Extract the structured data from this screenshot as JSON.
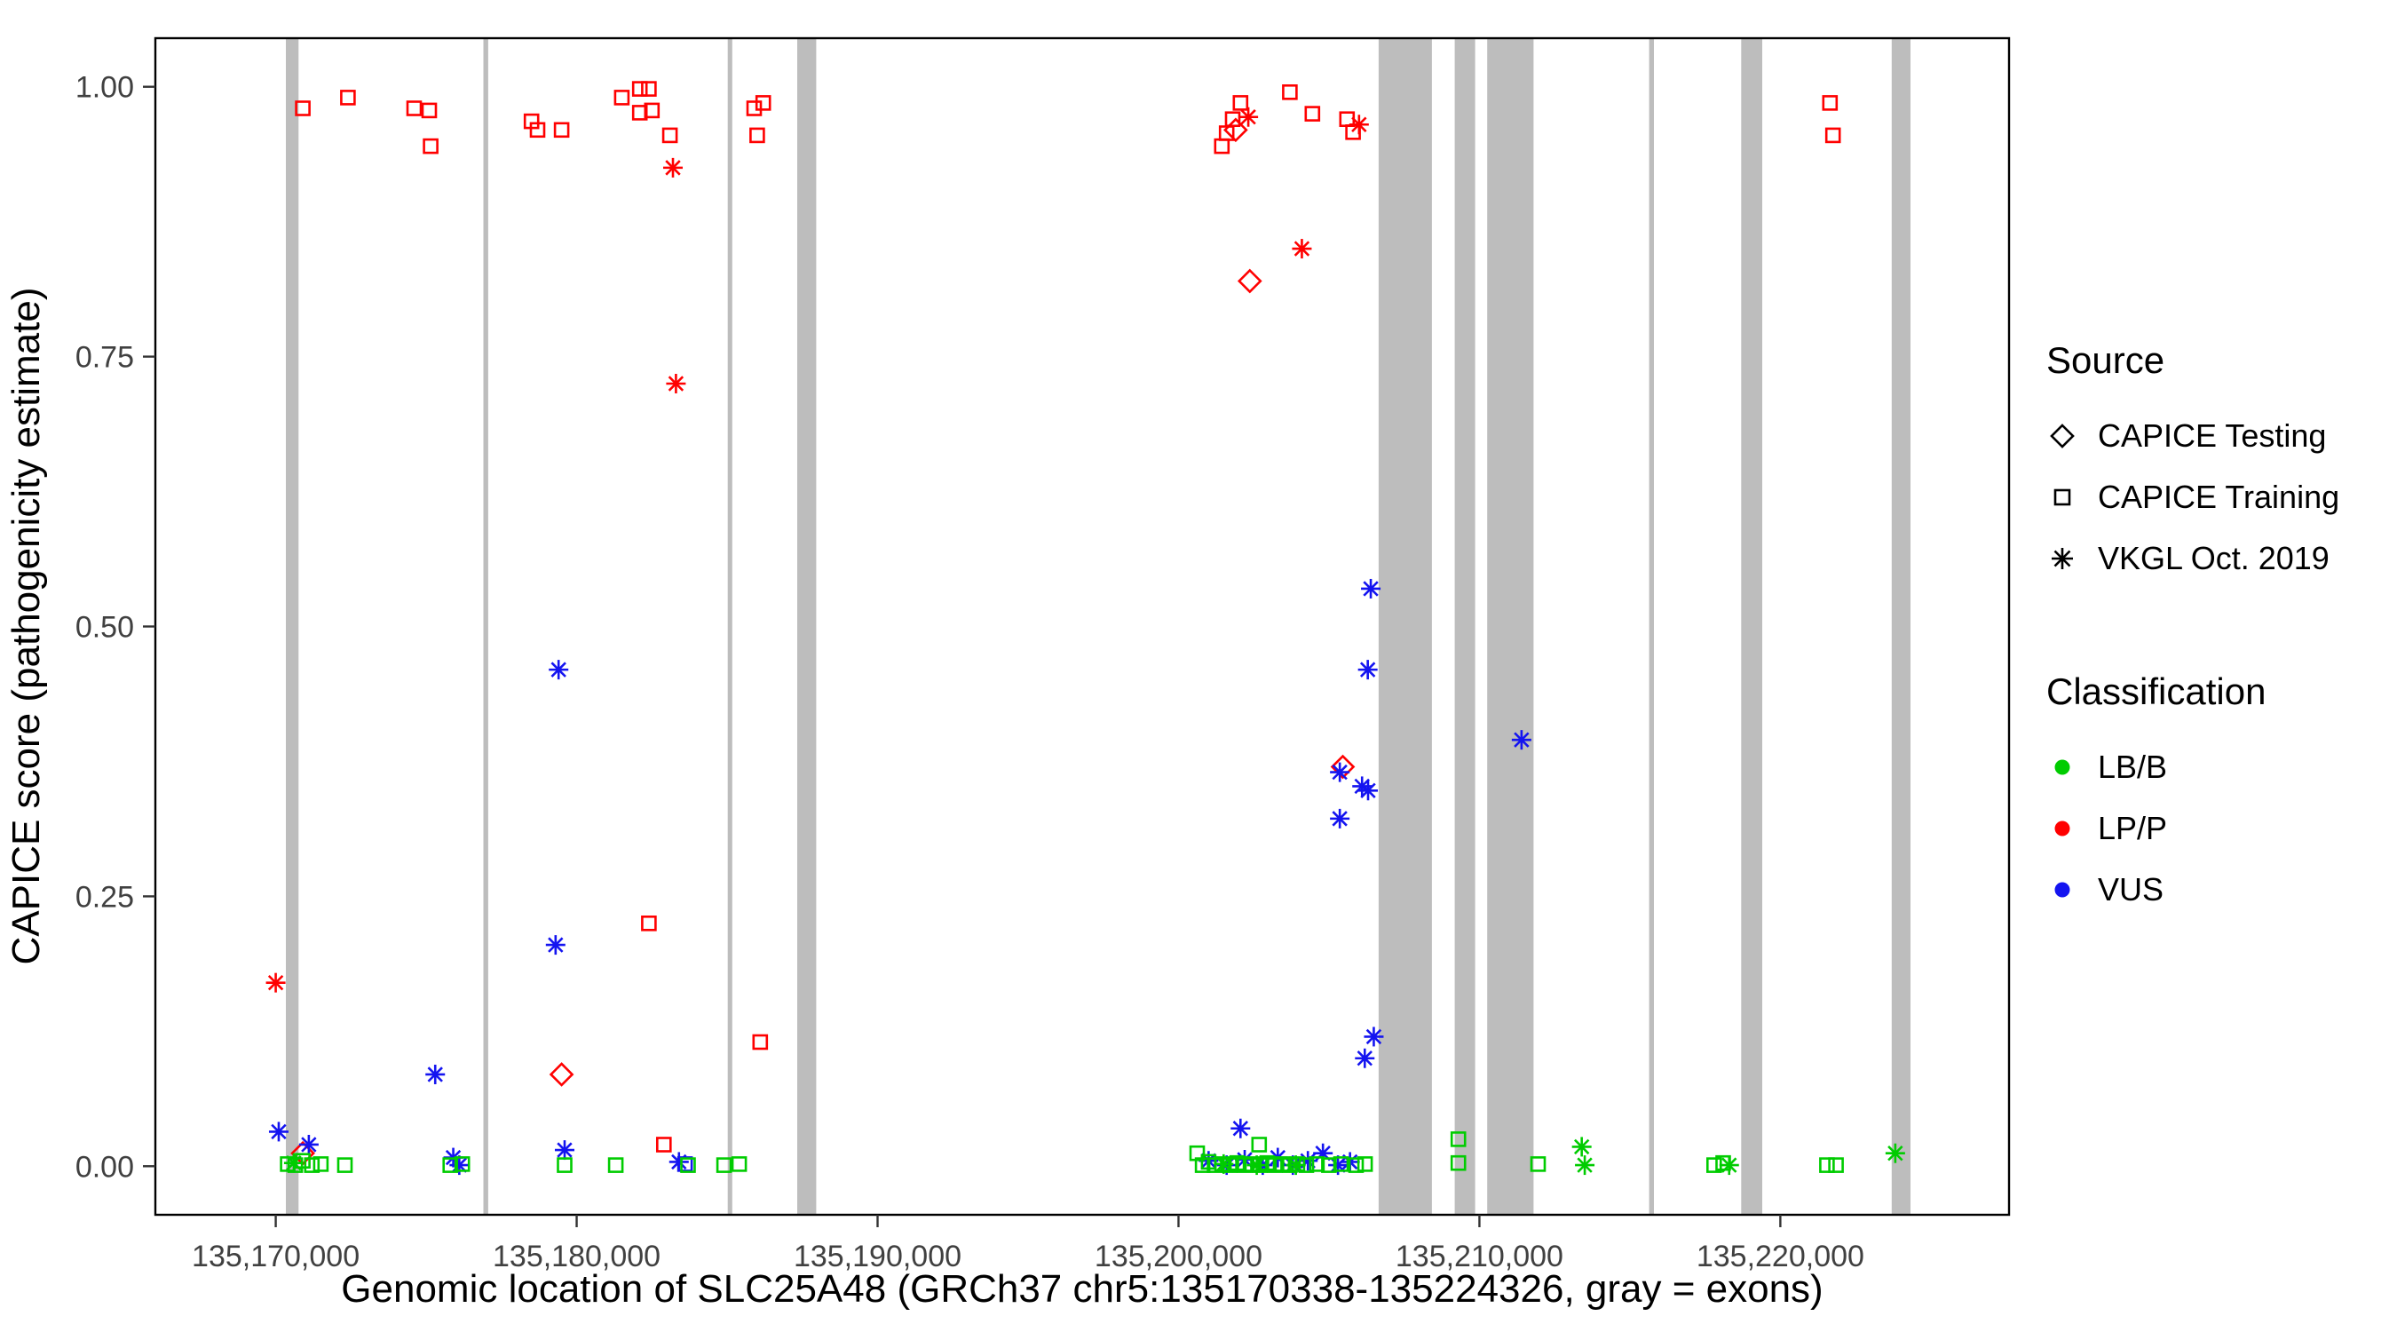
{
  "chart_data": {
    "type": "scatter",
    "title": "",
    "xlabel": "Genomic location of SLC25A48 (GRCh37 chr5:135170338-135224326, gray = exons)",
    "ylabel": "CAPICE score (pathogenicity estimate)",
    "xlim": [
      135166000,
      135227600
    ],
    "ylim": [
      -0.045,
      1.045
    ],
    "x_ticks": [
      135170000,
      135180000,
      135190000,
      135200000,
      135210000,
      135220000
    ],
    "x_tick_labels": [
      "135,170,000",
      "135,180,000",
      "135,190,000",
      "135,200,000",
      "135,210,000",
      "135,220,000"
    ],
    "y_ticks": [
      0,
      0.25,
      0.5,
      0.75,
      1
    ],
    "y_tick_labels": [
      "0.00",
      "0.25",
      "0.50",
      "0.75",
      "1.00"
    ],
    "grid": false,
    "legend_position": "right",
    "exon_color": "#BDBDBD",
    "colors": {
      "LB/B": "#00CC00",
      "LP/P": "#FF0000",
      "VUS": "#1414F0"
    },
    "shapes": {
      "CAPICE Testing": "diamond",
      "CAPICE Training": "square",
      "VKGL Oct. 2019": "asterisk"
    },
    "exons": [
      [
        135170338,
        135170760
      ],
      [
        135176900,
        135177060
      ],
      [
        135185020,
        135185170
      ],
      [
        135187330,
        135187960
      ],
      [
        135206650,
        135208420
      ],
      [
        135209180,
        135209860
      ],
      [
        135210260,
        135211800
      ],
      [
        135215640,
        135215800
      ],
      [
        135218700,
        135219400
      ],
      [
        135223700,
        135224326
      ]
    ],
    "points": [
      {
        "x": 135170900,
        "y": 0.98,
        "source": "CAPICE Training",
        "cls": "LP/P"
      },
      {
        "x": 135172400,
        "y": 0.99,
        "source": "CAPICE Training",
        "cls": "LP/P"
      },
      {
        "x": 135174600,
        "y": 0.98,
        "source": "CAPICE Training",
        "cls": "LP/P"
      },
      {
        "x": 135175100,
        "y": 0.978,
        "source": "CAPICE Training",
        "cls": "LP/P"
      },
      {
        "x": 135175150,
        "y": 0.945,
        "source": "CAPICE Training",
        "cls": "LP/P"
      },
      {
        "x": 135178500,
        "y": 0.968,
        "source": "CAPICE Training",
        "cls": "LP/P"
      },
      {
        "x": 135178700,
        "y": 0.96,
        "source": "CAPICE Training",
        "cls": "LP/P"
      },
      {
        "x": 135179500,
        "y": 0.96,
        "source": "CAPICE Training",
        "cls": "LP/P"
      },
      {
        "x": 135181500,
        "y": 0.99,
        "source": "CAPICE Training",
        "cls": "LP/P"
      },
      {
        "x": 135182100,
        "y": 0.998,
        "source": "CAPICE Training",
        "cls": "LP/P"
      },
      {
        "x": 135182400,
        "y": 0.998,
        "source": "CAPICE Training",
        "cls": "LP/P"
      },
      {
        "x": 135182100,
        "y": 0.976,
        "source": "CAPICE Training",
        "cls": "LP/P"
      },
      {
        "x": 135182500,
        "y": 0.978,
        "source": "CAPICE Training",
        "cls": "LP/P"
      },
      {
        "x": 135183100,
        "y": 0.955,
        "source": "CAPICE Training",
        "cls": "LP/P"
      },
      {
        "x": 135182400,
        "y": 0.225,
        "source": "CAPICE Training",
        "cls": "LP/P"
      },
      {
        "x": 135182900,
        "y": 0.02,
        "source": "CAPICE Training",
        "cls": "LP/P"
      },
      {
        "x": 135183200,
        "y": 0.925,
        "source": "VKGL Oct. 2019",
        "cls": "LP/P"
      },
      {
        "x": 135183300,
        "y": 0.725,
        "source": "VKGL Oct. 2019",
        "cls": "LP/P"
      },
      {
        "x": 135185900,
        "y": 0.98,
        "source": "CAPICE Training",
        "cls": "LP/P"
      },
      {
        "x": 135186200,
        "y": 0.985,
        "source": "CAPICE Training",
        "cls": "LP/P"
      },
      {
        "x": 135186000,
        "y": 0.955,
        "source": "CAPICE Training",
        "cls": "LP/P"
      },
      {
        "x": 135186100,
        "y": 0.115,
        "source": "CAPICE Training",
        "cls": "LP/P"
      },
      {
        "x": 135170000,
        "y": 0.17,
        "source": "VKGL Oct. 2019",
        "cls": "LP/P"
      },
      {
        "x": 135170900,
        "y": 0.012,
        "source": "CAPICE Testing",
        "cls": "LP/P"
      },
      {
        "x": 135179500,
        "y": 0.085,
        "source": "CAPICE Testing",
        "cls": "LP/P"
      },
      {
        "x": 135201440,
        "y": 0.945,
        "source": "CAPICE Training",
        "cls": "LP/P"
      },
      {
        "x": 135201600,
        "y": 0.957,
        "source": "CAPICE Training",
        "cls": "LP/P"
      },
      {
        "x": 135201800,
        "y": 0.97,
        "source": "CAPICE Training",
        "cls": "LP/P"
      },
      {
        "x": 135202060,
        "y": 0.985,
        "source": "CAPICE Training",
        "cls": "LP/P"
      },
      {
        "x": 135201900,
        "y": 0.96,
        "source": "CAPICE Testing",
        "cls": "LP/P"
      },
      {
        "x": 135202320,
        "y": 0.972,
        "source": "VKGL Oct. 2019",
        "cls": "LP/P"
      },
      {
        "x": 135203700,
        "y": 0.995,
        "source": "CAPICE Training",
        "cls": "LP/P"
      },
      {
        "x": 135204450,
        "y": 0.975,
        "source": "CAPICE Training",
        "cls": "LP/P"
      },
      {
        "x": 135205600,
        "y": 0.97,
        "source": "CAPICE Training",
        "cls": "LP/P"
      },
      {
        "x": 135205800,
        "y": 0.958,
        "source": "CAPICE Training",
        "cls": "LP/P"
      },
      {
        "x": 135206000,
        "y": 0.965,
        "source": "VKGL Oct. 2019",
        "cls": "LP/P"
      },
      {
        "x": 135202370,
        "y": 0.82,
        "source": "CAPICE Testing",
        "cls": "LP/P"
      },
      {
        "x": 135204100,
        "y": 0.85,
        "source": "VKGL Oct. 2019",
        "cls": "LP/P"
      },
      {
        "x": 135205460,
        "y": 0.37,
        "source": "CAPICE Testing",
        "cls": "LP/P"
      },
      {
        "x": 135221650,
        "y": 0.985,
        "source": "CAPICE Training",
        "cls": "LP/P"
      },
      {
        "x": 135221750,
        "y": 0.955,
        "source": "CAPICE Training",
        "cls": "LP/P"
      },
      {
        "x": 135170100,
        "y": 0.032,
        "source": "VKGL Oct. 2019",
        "cls": "VUS"
      },
      {
        "x": 135171100,
        "y": 0.02,
        "source": "VKGL Oct. 2019",
        "cls": "VUS"
      },
      {
        "x": 135175300,
        "y": 0.085,
        "source": "VKGL Oct. 2019",
        "cls": "VUS"
      },
      {
        "x": 135175900,
        "y": 0.008,
        "source": "VKGL Oct. 2019",
        "cls": "VUS"
      },
      {
        "x": 135176100,
        "y": 0.001,
        "source": "VKGL Oct. 2019",
        "cls": "VUS"
      },
      {
        "x": 135179400,
        "y": 0.46,
        "source": "VKGL Oct. 2019",
        "cls": "VUS"
      },
      {
        "x": 135179300,
        "y": 0.205,
        "source": "VKGL Oct. 2019",
        "cls": "VUS"
      },
      {
        "x": 135179600,
        "y": 0.015,
        "source": "VKGL Oct. 2019",
        "cls": "VUS"
      },
      {
        "x": 135183400,
        "y": 0.004,
        "source": "VKGL Oct. 2019",
        "cls": "VUS"
      },
      {
        "x": 135183600,
        "y": 0.002,
        "source": "CAPICE Training",
        "cls": "VUS"
      },
      {
        "x": 135201000,
        "y": 0.005,
        "source": "VKGL Oct. 2019",
        "cls": "VUS"
      },
      {
        "x": 135201600,
        "y": 0.001,
        "source": "VKGL Oct. 2019",
        "cls": "VUS"
      },
      {
        "x": 135202060,
        "y": 0.035,
        "source": "VKGL Oct. 2019",
        "cls": "VUS"
      },
      {
        "x": 135202200,
        "y": 0.006,
        "source": "VKGL Oct. 2019",
        "cls": "VUS"
      },
      {
        "x": 135202800,
        "y": 0.001,
        "source": "VKGL Oct. 2019",
        "cls": "VUS"
      },
      {
        "x": 135203300,
        "y": 0.008,
        "source": "VKGL Oct. 2019",
        "cls": "VUS"
      },
      {
        "x": 135203800,
        "y": 0.001,
        "source": "VKGL Oct. 2019",
        "cls": "VUS"
      },
      {
        "x": 135204300,
        "y": 0.005,
        "source": "VKGL Oct. 2019",
        "cls": "VUS"
      },
      {
        "x": 135204800,
        "y": 0.012,
        "source": "VKGL Oct. 2019",
        "cls": "VUS"
      },
      {
        "x": 135205300,
        "y": 0.001,
        "source": "VKGL Oct. 2019",
        "cls": "VUS"
      },
      {
        "x": 135205700,
        "y": 0.004,
        "source": "VKGL Oct. 2019",
        "cls": "VUS"
      },
      {
        "x": 135205360,
        "y": 0.365,
        "source": "VKGL Oct. 2019",
        "cls": "VUS"
      },
      {
        "x": 135205360,
        "y": 0.322,
        "source": "VKGL Oct. 2019",
        "cls": "VUS"
      },
      {
        "x": 135206100,
        "y": 0.352,
        "source": "VKGL Oct. 2019",
        "cls": "VUS"
      },
      {
        "x": 135206300,
        "y": 0.348,
        "source": "VKGL Oct. 2019",
        "cls": "VUS"
      },
      {
        "x": 135206290,
        "y": 0.46,
        "source": "VKGL Oct. 2019",
        "cls": "VUS"
      },
      {
        "x": 135206390,
        "y": 0.535,
        "source": "VKGL Oct. 2019",
        "cls": "VUS"
      },
      {
        "x": 135206190,
        "y": 0.1,
        "source": "VKGL Oct. 2019",
        "cls": "VUS"
      },
      {
        "x": 135206490,
        "y": 0.12,
        "source": "VKGL Oct. 2019",
        "cls": "VUS"
      },
      {
        "x": 135211400,
        "y": 0.395,
        "source": "VKGL Oct. 2019",
        "cls": "VUS"
      },
      {
        "x": 135170400,
        "y": 0.002,
        "source": "CAPICE Training",
        "cls": "LB/B"
      },
      {
        "x": 135170650,
        "y": 0.001,
        "source": "CAPICE Training",
        "cls": "LB/B"
      },
      {
        "x": 135170900,
        "y": 0.005,
        "source": "CAPICE Training",
        "cls": "LB/B"
      },
      {
        "x": 135171200,
        "y": 0.001,
        "source": "CAPICE Training",
        "cls": "LB/B"
      },
      {
        "x": 135171500,
        "y": 0.002,
        "source": "CAPICE Training",
        "cls": "LB/B"
      },
      {
        "x": 135172300,
        "y": 0.001,
        "source": "CAPICE Training",
        "cls": "LB/B"
      },
      {
        "x": 135170600,
        "y": 0.003,
        "source": "VKGL Oct. 2019",
        "cls": "LB/B"
      },
      {
        "x": 135175800,
        "y": 0.001,
        "source": "CAPICE Training",
        "cls": "LB/B"
      },
      {
        "x": 135176200,
        "y": 0.002,
        "source": "CAPICE Training",
        "cls": "LB/B"
      },
      {
        "x": 135179600,
        "y": 0.001,
        "source": "CAPICE Training",
        "cls": "LB/B"
      },
      {
        "x": 135181300,
        "y": 0.001,
        "source": "CAPICE Training",
        "cls": "LB/B"
      },
      {
        "x": 135183700,
        "y": 0.001,
        "source": "CAPICE Training",
        "cls": "LB/B"
      },
      {
        "x": 135184900,
        "y": 0.001,
        "source": "CAPICE Training",
        "cls": "LB/B"
      },
      {
        "x": 135185400,
        "y": 0.002,
        "source": "CAPICE Training",
        "cls": "LB/B"
      },
      {
        "x": 135200620,
        "y": 0.012,
        "source": "CAPICE Training",
        "cls": "LB/B"
      },
      {
        "x": 135200800,
        "y": 0.001,
        "source": "CAPICE Training",
        "cls": "LB/B"
      },
      {
        "x": 135201000,
        "y": 0.004,
        "source": "CAPICE Training",
        "cls": "LB/B"
      },
      {
        "x": 135201200,
        "y": 0.001,
        "source": "CAPICE Training",
        "cls": "LB/B"
      },
      {
        "x": 135201450,
        "y": 0.002,
        "source": "CAPICE Training",
        "cls": "LB/B"
      },
      {
        "x": 135201700,
        "y": 0.001,
        "source": "CAPICE Training",
        "cls": "LB/B"
      },
      {
        "x": 135201950,
        "y": 0.003,
        "source": "CAPICE Training",
        "cls": "LB/B"
      },
      {
        "x": 135202200,
        "y": 0.001,
        "source": "CAPICE Training",
        "cls": "LB/B"
      },
      {
        "x": 135202450,
        "y": 0.002,
        "source": "CAPICE Training",
        "cls": "LB/B"
      },
      {
        "x": 135202680,
        "y": 0.02,
        "source": "CAPICE Training",
        "cls": "LB/B"
      },
      {
        "x": 135202700,
        "y": 0.001,
        "source": "CAPICE Training",
        "cls": "LB/B"
      },
      {
        "x": 135202950,
        "y": 0.003,
        "source": "CAPICE Training",
        "cls": "LB/B"
      },
      {
        "x": 135203200,
        "y": 0.001,
        "source": "CAPICE Training",
        "cls": "LB/B"
      },
      {
        "x": 135203450,
        "y": 0.002,
        "source": "CAPICE Training",
        "cls": "LB/B"
      },
      {
        "x": 135203700,
        "y": 0.001,
        "source": "CAPICE Training",
        "cls": "LB/B"
      },
      {
        "x": 135203950,
        "y": 0.002,
        "source": "CAPICE Training",
        "cls": "LB/B"
      },
      {
        "x": 135204250,
        "y": 0.001,
        "source": "CAPICE Training",
        "cls": "LB/B"
      },
      {
        "x": 135204600,
        "y": 0.002,
        "source": "CAPICE Training",
        "cls": "LB/B"
      },
      {
        "x": 135205000,
        "y": 0.001,
        "source": "CAPICE Training",
        "cls": "LB/B"
      },
      {
        "x": 135205400,
        "y": 0.002,
        "source": "CAPICE Training",
        "cls": "LB/B"
      },
      {
        "x": 135205900,
        "y": 0.001,
        "source": "CAPICE Training",
        "cls": "LB/B"
      },
      {
        "x": 135206200,
        "y": 0.002,
        "source": "CAPICE Training",
        "cls": "LB/B"
      },
      {
        "x": 135201500,
        "y": 0.002,
        "source": "VKGL Oct. 2019",
        "cls": "LB/B"
      },
      {
        "x": 135202600,
        "y": 0.001,
        "source": "VKGL Oct. 2019",
        "cls": "LB/B"
      },
      {
        "x": 135203900,
        "y": 0.001,
        "source": "VKGL Oct. 2019",
        "cls": "LB/B"
      },
      {
        "x": 135209300,
        "y": 0.025,
        "source": "CAPICE Training",
        "cls": "LB/B"
      },
      {
        "x": 135209300,
        "y": 0.003,
        "source": "CAPICE Training",
        "cls": "LB/B"
      },
      {
        "x": 135211950,
        "y": 0.002,
        "source": "CAPICE Training",
        "cls": "LB/B"
      },
      {
        "x": 135213400,
        "y": 0.018,
        "source": "VKGL Oct. 2019",
        "cls": "LB/B"
      },
      {
        "x": 135213500,
        "y": 0.001,
        "source": "VKGL Oct. 2019",
        "cls": "LB/B"
      },
      {
        "x": 135217800,
        "y": 0.001,
        "source": "CAPICE Training",
        "cls": "LB/B"
      },
      {
        "x": 135218100,
        "y": 0.003,
        "source": "CAPICE Training",
        "cls": "LB/B"
      },
      {
        "x": 135218300,
        "y": 0.001,
        "source": "VKGL Oct. 2019",
        "cls": "LB/B"
      },
      {
        "x": 135221550,
        "y": 0.001,
        "source": "CAPICE Training",
        "cls": "LB/B"
      },
      {
        "x": 135221850,
        "y": 0.001,
        "source": "CAPICE Training",
        "cls": "LB/B"
      },
      {
        "x": 135223820,
        "y": 0.012,
        "source": "VKGL Oct. 2019",
        "cls": "LB/B"
      }
    ]
  },
  "legend": {
    "source": {
      "title": "Source",
      "items": [
        {
          "label": "CAPICE Testing",
          "shape": "diamond"
        },
        {
          "label": "CAPICE Training",
          "shape": "square"
        },
        {
          "label": "VKGL Oct. 2019",
          "shape": "asterisk"
        }
      ]
    },
    "classification": {
      "title": "Classification",
      "items": [
        {
          "label": "LB/B",
          "color_key": "LB/B"
        },
        {
          "label": "LP/P",
          "color_key": "LP/P"
        },
        {
          "label": "VUS",
          "color_key": "VUS"
        }
      ]
    }
  }
}
